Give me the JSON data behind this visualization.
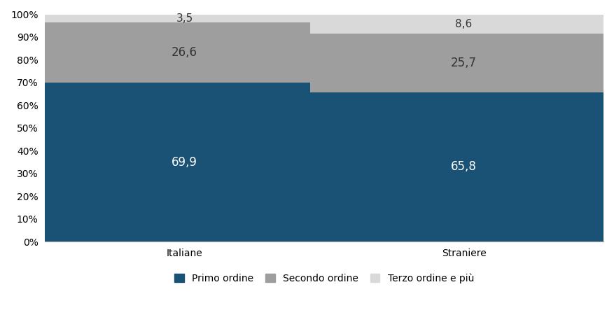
{
  "categories": [
    "Italiane",
    "Straniere"
  ],
  "primo_ordine": [
    69.9,
    65.8
  ],
  "secondo_ordine": [
    26.6,
    25.7
  ],
  "terzo_ordine": [
    3.5,
    8.6
  ],
  "labels_primo": [
    "69,9",
    "65,8"
  ],
  "labels_secondo": [
    "26,6",
    "25,7"
  ],
  "labels_terzo": [
    "3,5",
    "8,6"
  ],
  "color_primo": "#1a5276",
  "color_secondo": "#9e9e9e",
  "color_terzo": "#d9d9d9",
  "label_primo": "Primo ordine",
  "label_secondo": "Secondo ordine",
  "label_terzo": "Terzo ordine e più",
  "ylim": [
    0,
    100
  ],
  "yticks": [
    0,
    10,
    20,
    30,
    40,
    50,
    60,
    70,
    80,
    90,
    100
  ],
  "yticklabels": [
    "0%",
    "10%",
    "20%",
    "30%",
    "40%",
    "50%",
    "60%",
    "70%",
    "80%",
    "90%",
    "100%"
  ],
  "bar_width": 0.55,
  "x_positions": [
    0.25,
    0.75
  ],
  "xlim": [
    0.0,
    1.0
  ],
  "tick_fontsize": 10,
  "legend_fontsize": 10,
  "value_fontsize_large": 12,
  "value_fontsize_small": 11
}
